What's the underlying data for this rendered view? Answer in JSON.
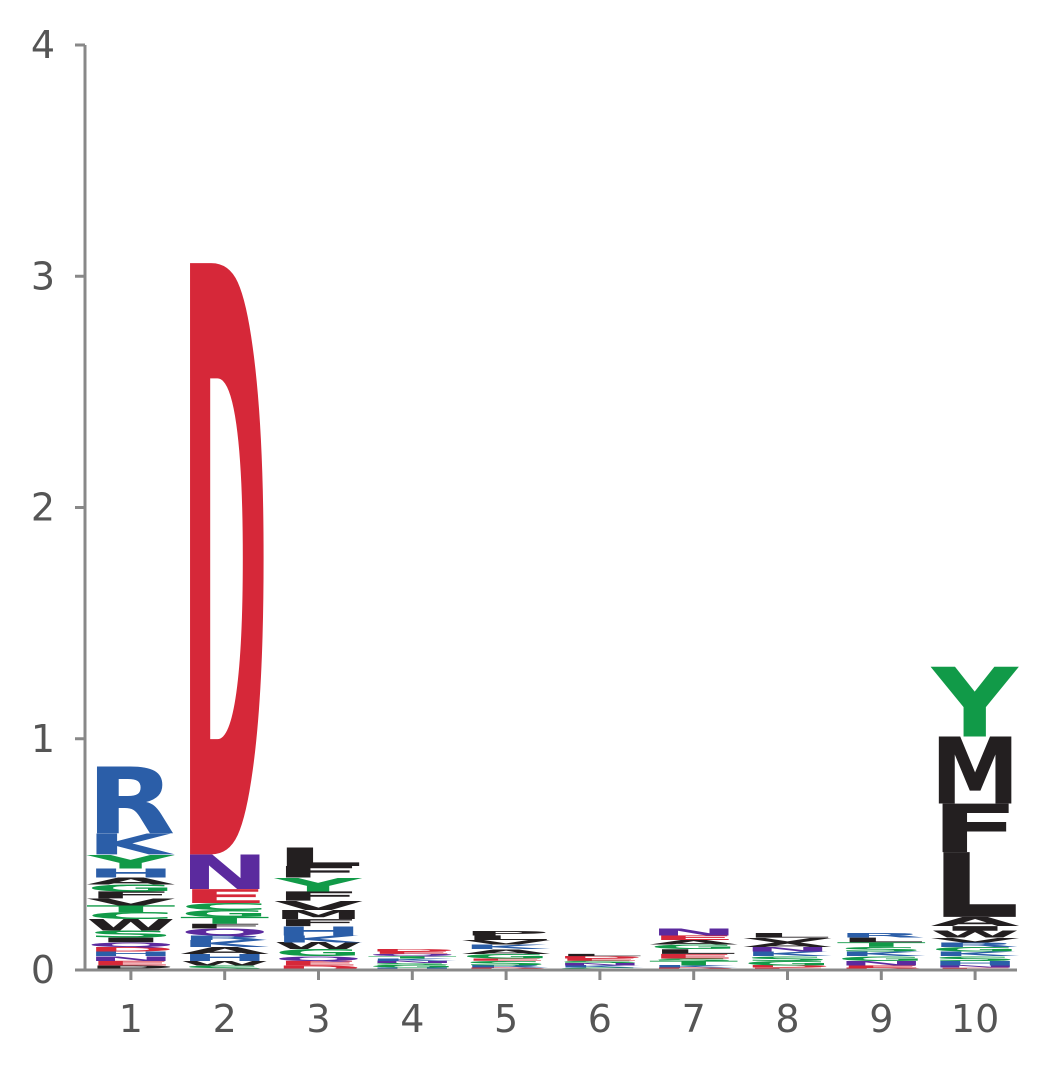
{
  "chart_data": {
    "type": "sequence-logo",
    "x_ticks": [
      "1",
      "2",
      "3",
      "4",
      "5",
      "6",
      "7",
      "8",
      "9",
      "10"
    ],
    "y_ticks": [
      "0",
      "1",
      "2",
      "3",
      "4"
    ],
    "ylim": [
      0,
      4
    ],
    "xlabel": "",
    "ylabel": "",
    "title": "",
    "colors": {
      "basic": "#231f20",
      "acidic": "#d62839",
      "polar": "#119a48",
      "neutral": "#5b2a9e",
      "positive": "#2b5ea8",
      "axis": "#888888",
      "tick_text": "#555555"
    },
    "residue_classes": {
      "R": "positive",
      "K": "positive",
      "H": "positive",
      "D": "acidic",
      "E": "acidic",
      "N": "neutral",
      "Q": "neutral",
      "Y": "polar",
      "G": "polar",
      "S": "polar",
      "T": "polar",
      "C": "polar",
      "M": "basic",
      "F": "basic",
      "L": "basic",
      "V": "basic",
      "W": "basic",
      "A": "basic",
      "I": "basic",
      "P": "basic"
    },
    "positions": [
      {
        "position": "1",
        "stack": [
          {
            "letter": "P",
            "height": 0.02
          },
          {
            "letter": "E",
            "height": 0.02
          },
          {
            "letter": "N",
            "height": 0.02
          },
          {
            "letter": "H",
            "height": 0.02
          },
          {
            "letter": "D",
            "height": 0.02
          },
          {
            "letter": "Q",
            "height": 0.02
          },
          {
            "letter": "I",
            "height": 0.02
          },
          {
            "letter": "S",
            "height": 0.03
          },
          {
            "letter": "W",
            "height": 0.05
          },
          {
            "letter": "C",
            "height": 0.03
          },
          {
            "letter": "T",
            "height": 0.03
          },
          {
            "letter": "V",
            "height": 0.03
          },
          {
            "letter": "F",
            "height": 0.03
          },
          {
            "letter": "G",
            "height": 0.03
          },
          {
            "letter": "A",
            "height": 0.03
          },
          {
            "letter": "H",
            "height": 0.04
          },
          {
            "letter": "Y",
            "height": 0.06
          },
          {
            "letter": "K",
            "height": 0.09
          },
          {
            "letter": "R",
            "height": 0.29
          }
        ]
      },
      {
        "position": "2",
        "stack": [
          {
            "letter": "S",
            "height": 0.02
          },
          {
            "letter": "W",
            "height": 0.02
          },
          {
            "letter": "H",
            "height": 0.03
          },
          {
            "letter": "A",
            "height": 0.03
          },
          {
            "letter": "K",
            "height": 0.03
          },
          {
            "letter": "R",
            "height": 0.02
          },
          {
            "letter": "Q",
            "height": 0.03
          },
          {
            "letter": "F",
            "height": 0.02
          },
          {
            "letter": "T",
            "height": 0.03
          },
          {
            "letter": "G",
            "height": 0.03
          },
          {
            "letter": "C",
            "height": 0.03
          },
          {
            "letter": "E",
            "height": 0.06
          },
          {
            "letter": "N",
            "height": 0.15
          },
          {
            "letter": "D",
            "height": 2.56
          }
        ]
      },
      {
        "position": "3",
        "stack": [
          {
            "letter": "D",
            "height": 0.02
          },
          {
            "letter": "E",
            "height": 0.02
          },
          {
            "letter": "Q",
            "height": 0.02
          },
          {
            "letter": "G",
            "height": 0.03
          },
          {
            "letter": "W",
            "height": 0.03
          },
          {
            "letter": "K",
            "height": 0.03
          },
          {
            "letter": "H",
            "height": 0.04
          },
          {
            "letter": "F",
            "height": 0.03
          },
          {
            "letter": "M",
            "height": 0.04
          },
          {
            "letter": "V",
            "height": 0.04
          },
          {
            "letter": "F",
            "height": 0.04
          },
          {
            "letter": "Y",
            "height": 0.06
          },
          {
            "letter": "F",
            "height": 0.05
          },
          {
            "letter": "L",
            "height": 0.08
          }
        ]
      },
      {
        "position": "4",
        "stack": [
          {
            "letter": "H",
            "height": 0.01
          },
          {
            "letter": "G",
            "height": 0.01
          },
          {
            "letter": "S",
            "height": 0.01
          },
          {
            "letter": "N",
            "height": 0.01
          },
          {
            "letter": "K",
            "height": 0.01
          },
          {
            "letter": "T",
            "height": 0.01
          },
          {
            "letter": "Q",
            "height": 0.01
          },
          {
            "letter": "E",
            "height": 0.01
          },
          {
            "letter": "D",
            "height": 0.01
          }
        ]
      },
      {
        "position": "5",
        "stack": [
          {
            "letter": "D",
            "height": 0.01
          },
          {
            "letter": "R",
            "height": 0.01
          },
          {
            "letter": "S",
            "height": 0.02
          },
          {
            "letter": "E",
            "height": 0.01
          },
          {
            "letter": "G",
            "height": 0.02
          },
          {
            "letter": "A",
            "height": 0.02
          },
          {
            "letter": "K",
            "height": 0.02
          },
          {
            "letter": "V",
            "height": 0.02
          },
          {
            "letter": "L",
            "height": 0.02
          },
          {
            "letter": "P",
            "height": 0.02
          }
        ]
      },
      {
        "position": "6",
        "stack": [
          {
            "letter": "G",
            "height": 0.01
          },
          {
            "letter": "K",
            "height": 0.01
          },
          {
            "letter": "N",
            "height": 0.01
          },
          {
            "letter": "S",
            "height": 0.01
          },
          {
            "letter": "E",
            "height": 0.01
          },
          {
            "letter": "D",
            "height": 0.01
          },
          {
            "letter": "L",
            "height": 0.01
          }
        ]
      },
      {
        "position": "7",
        "stack": [
          {
            "letter": "D",
            "height": 0.01
          },
          {
            "letter": "K",
            "height": 0.01
          },
          {
            "letter": "T",
            "height": 0.02
          },
          {
            "letter": "S",
            "height": 0.01
          },
          {
            "letter": "E",
            "height": 0.02
          },
          {
            "letter": "L",
            "height": 0.02
          },
          {
            "letter": "G",
            "height": 0.02
          },
          {
            "letter": "A",
            "height": 0.02
          },
          {
            "letter": "E",
            "height": 0.02
          },
          {
            "letter": "N",
            "height": 0.03
          }
        ]
      },
      {
        "position": "8",
        "stack": [
          {
            "letter": "E",
            "height": 0.01
          },
          {
            "letter": "D",
            "height": 0.01
          },
          {
            "letter": "G",
            "height": 0.02
          },
          {
            "letter": "S",
            "height": 0.02
          },
          {
            "letter": "K",
            "height": 0.02
          },
          {
            "letter": "N",
            "height": 0.02
          },
          {
            "letter": "A",
            "height": 0.02
          },
          {
            "letter": "V",
            "height": 0.02
          },
          {
            "letter": "L",
            "height": 0.02
          }
        ]
      },
      {
        "position": "9",
        "stack": [
          {
            "letter": "D",
            "height": 0.01
          },
          {
            "letter": "E",
            "height": 0.01
          },
          {
            "letter": "N",
            "height": 0.02
          },
          {
            "letter": "G",
            "height": 0.02
          },
          {
            "letter": "K",
            "height": 0.02
          },
          {
            "letter": "S",
            "height": 0.02
          },
          {
            "letter": "T",
            "height": 0.02
          },
          {
            "letter": "L",
            "height": 0.02
          },
          {
            "letter": "R",
            "height": 0.02
          }
        ]
      },
      {
        "position": "10",
        "stack": [
          {
            "letter": "E",
            "height": 0.01
          },
          {
            "letter": "N",
            "height": 0.01
          },
          {
            "letter": "H",
            "height": 0.02
          },
          {
            "letter": "S",
            "height": 0.02
          },
          {
            "letter": "K",
            "height": 0.02
          },
          {
            "letter": "G",
            "height": 0.02
          },
          {
            "letter": "R",
            "height": 0.02
          },
          {
            "letter": "V",
            "height": 0.02
          },
          {
            "letter": "W",
            "height": 0.03
          },
          {
            "letter": "I",
            "height": 0.02
          },
          {
            "letter": "A",
            "height": 0.04
          },
          {
            "letter": "L",
            "height": 0.28
          },
          {
            "letter": "F",
            "height": 0.21
          },
          {
            "letter": "M",
            "height": 0.29
          },
          {
            "letter": "Y",
            "height": 0.3
          }
        ]
      }
    ]
  }
}
